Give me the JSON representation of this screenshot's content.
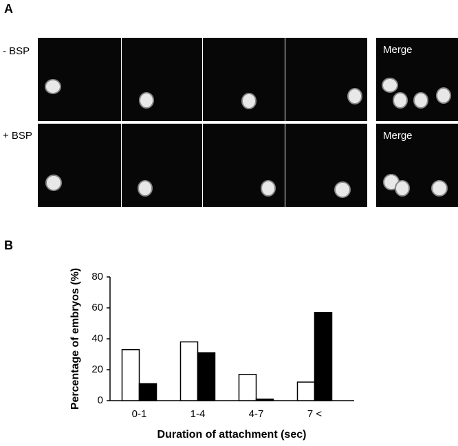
{
  "panel_a": {
    "label": "A",
    "rows": [
      {
        "label": "- BSP"
      },
      {
        "label": "+ BSP"
      }
    ],
    "merge_labels": [
      "Merge",
      "Merge"
    ]
  },
  "panel_b": {
    "label": "B"
  },
  "chart_data": {
    "type": "bar",
    "xlabel": "Duration of attachment (sec)",
    "ylabel": "Percentage of embryos  (%)",
    "categories": [
      "0-1",
      "1-4",
      "4-7",
      "7 <"
    ],
    "series": [
      {
        "color": "#ffffff",
        "values": [
          33,
          38,
          17,
          12
        ]
      },
      {
        "color": "#000000",
        "values": [
          11,
          31,
          1,
          57
        ]
      }
    ],
    "ylim": [
      0,
      80
    ],
    "yticks": [
      0,
      20,
      40,
      60,
      80
    ]
  }
}
